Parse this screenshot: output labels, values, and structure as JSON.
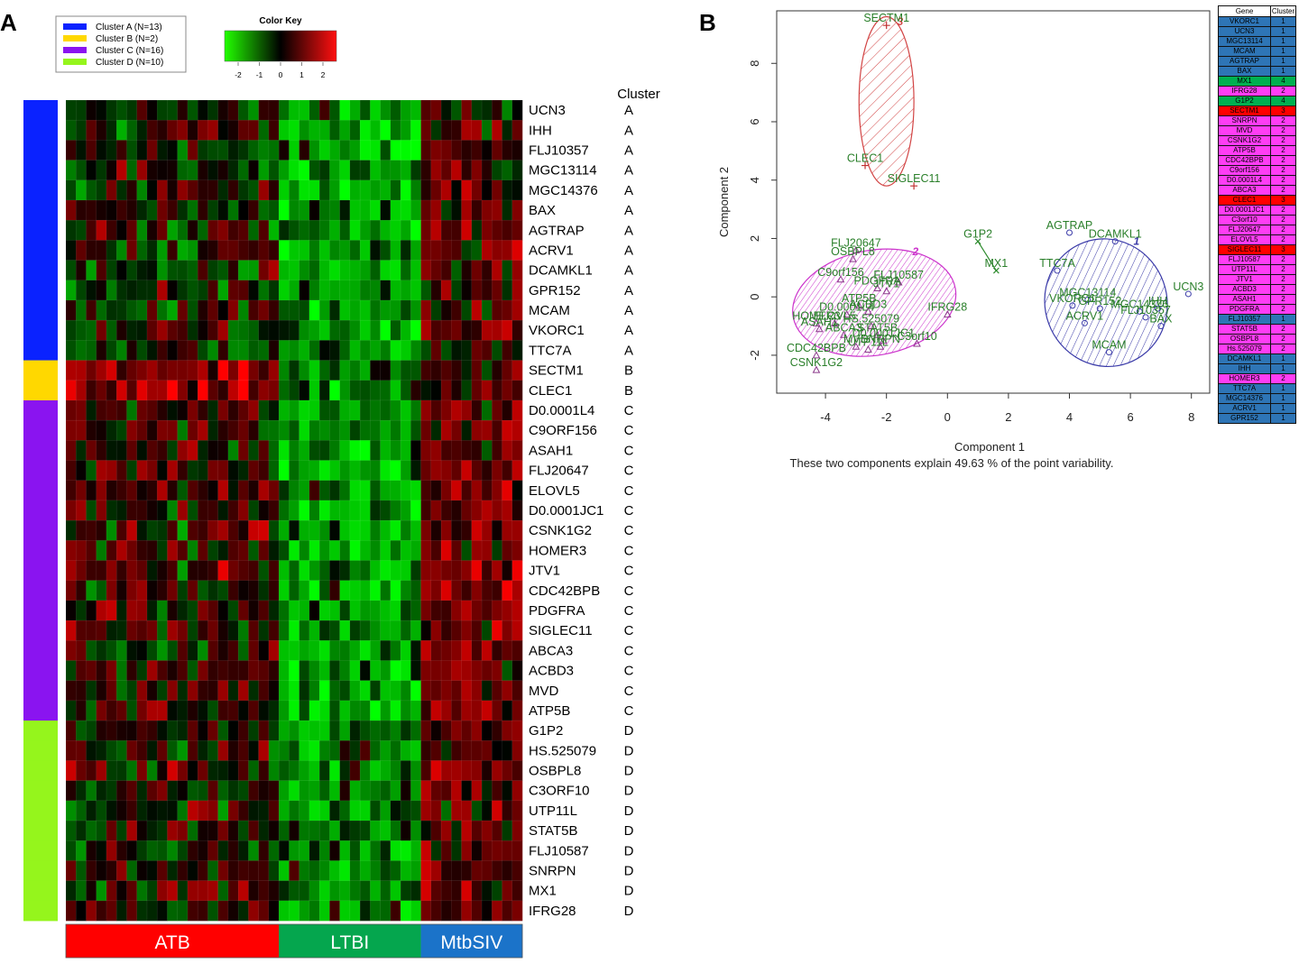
{
  "panel_labels": {
    "a": "A",
    "b": "B"
  },
  "colors": {
    "cluster_A": "#0a22ff",
    "cluster_B": "#ffd800",
    "cluster_C": "#8a14f0",
    "cluster_D": "#95f51c",
    "atb": "#ff0000",
    "ltbi": "#05a64e",
    "mtbsiv": "#1b73c9",
    "pca_text": "#2a7f2a",
    "ellipse_1": "#3a3aa8",
    "ellipse_2": "#cc33cc",
    "ellipse_3": "#d24444",
    "table_c1": "#2e75b6",
    "table_c2": "#ff3df5",
    "table_c3": "#ff0000",
    "table_c4": "#00b050"
  },
  "legend": [
    {
      "label": "Cluster A (N=13)",
      "color": "#0a22ff"
    },
    {
      "label": "Cluster B (N=2)",
      "color": "#ffd800"
    },
    {
      "label": "Cluster C (N=16)",
      "color": "#8a14f0"
    },
    {
      "label": "Cluster D (N=10)",
      "color": "#95f51c"
    }
  ],
  "color_key": {
    "title": "Color Key",
    "ticks": [
      "-2",
      "-1",
      "0",
      "1",
      "2"
    ]
  },
  "heatmap": {
    "cluster_header": "Cluster",
    "rows": [
      {
        "gene": "UCN3",
        "cluster": "A"
      },
      {
        "gene": "IHH",
        "cluster": "A"
      },
      {
        "gene": "FLJ10357",
        "cluster": "A"
      },
      {
        "gene": "MGC13114",
        "cluster": "A"
      },
      {
        "gene": "MGC14376",
        "cluster": "A"
      },
      {
        "gene": "BAX",
        "cluster": "A"
      },
      {
        "gene": "AGTRAP",
        "cluster": "A"
      },
      {
        "gene": "ACRV1",
        "cluster": "A"
      },
      {
        "gene": "DCAMKL1",
        "cluster": "A"
      },
      {
        "gene": "GPR152",
        "cluster": "A"
      },
      {
        "gene": "MCAM",
        "cluster": "A"
      },
      {
        "gene": "VKORC1",
        "cluster": "A"
      },
      {
        "gene": "TTC7A",
        "cluster": "A"
      },
      {
        "gene": "SECTM1",
        "cluster": "B"
      },
      {
        "gene": "CLEC1",
        "cluster": "B"
      },
      {
        "gene": "D0.0001L4",
        "cluster": "C"
      },
      {
        "gene": "C9ORF156",
        "cluster": "C"
      },
      {
        "gene": "ASAH1",
        "cluster": "C"
      },
      {
        "gene": "FLJ20647",
        "cluster": "C"
      },
      {
        "gene": "ELOVL5",
        "cluster": "C"
      },
      {
        "gene": "D0.0001JC1",
        "cluster": "C"
      },
      {
        "gene": "CSNK1G2",
        "cluster": "C"
      },
      {
        "gene": "HOMER3",
        "cluster": "C"
      },
      {
        "gene": "JTV1",
        "cluster": "C"
      },
      {
        "gene": "CDC42BPB",
        "cluster": "C"
      },
      {
        "gene": "PDGFRA",
        "cluster": "C"
      },
      {
        "gene": "SIGLEC11",
        "cluster": "C"
      },
      {
        "gene": "ABCA3",
        "cluster": "C"
      },
      {
        "gene": "ACBD3",
        "cluster": "C"
      },
      {
        "gene": "MVD",
        "cluster": "C"
      },
      {
        "gene": "ATP5B",
        "cluster": "C"
      },
      {
        "gene": "G1P2",
        "cluster": "D"
      },
      {
        "gene": "HS.525079",
        "cluster": "D"
      },
      {
        "gene": "OSBPL8",
        "cluster": "D"
      },
      {
        "gene": "C3ORF10",
        "cluster": "D"
      },
      {
        "gene": "UTP11L",
        "cluster": "D"
      },
      {
        "gene": "STAT5B",
        "cluster": "D"
      },
      {
        "gene": "FLJ10587",
        "cluster": "D"
      },
      {
        "gene": "SNRPN",
        "cluster": "D"
      },
      {
        "gene": "MX1",
        "cluster": "D"
      },
      {
        "gene": "IFRG28",
        "cluster": "D"
      }
    ],
    "groups": [
      {
        "label": "ATB",
        "n": 21
      },
      {
        "label": "LTBI",
        "n": 14
      },
      {
        "label": "MtbSIV",
        "n": 10
      }
    ]
  },
  "chart_data": {
    "type": "scatter",
    "xlabel": "Component 1",
    "ylabel": "Component 2",
    "caption": "These two components explain 49.63 % of the point variability.",
    "xlim": [
      -5.6,
      8.6
    ],
    "ylim": [
      -3.3,
      9.8
    ],
    "xticks": [
      -4,
      -2,
      0,
      2,
      4,
      6,
      8
    ],
    "yticks": [
      -2,
      0,
      2,
      4,
      6,
      8
    ],
    "clusters": [
      {
        "id": "1",
        "label": "1",
        "center": [
          5.2,
          -0.2
        ],
        "rx": 2.0,
        "ry": 2.2,
        "angle": 20,
        "color": "#3a3aa8"
      },
      {
        "id": "2",
        "label": "2",
        "center": [
          -2.4,
          -0.2
        ],
        "rx": 2.7,
        "ry": 1.8,
        "angle": 10,
        "color": "#cc33cc"
      },
      {
        "id": "3",
        "label": "3",
        "center": [
          -2.0,
          6.7
        ],
        "rx": 0.9,
        "ry": 2.9,
        "angle": 0,
        "color": "#d24444"
      }
    ],
    "points": [
      {
        "label": "SECTM1",
        "x": -2.0,
        "y": 9.3,
        "cluster": "3"
      },
      {
        "label": "CLEC1",
        "x": -2.7,
        "y": 4.5,
        "cluster": "3"
      },
      {
        "label": "SIGLEC11",
        "x": -1.1,
        "y": 3.8,
        "cluster": "3"
      },
      {
        "label": "G1P2",
        "x": 1.0,
        "y": 1.9,
        "cluster": "4"
      },
      {
        "label": "MX1",
        "x": 1.6,
        "y": 0.9,
        "cluster": "4"
      },
      {
        "label": "AGTRAP",
        "x": 4.0,
        "y": 2.2,
        "cluster": "1"
      },
      {
        "label": "DCAMKL1",
        "x": 5.5,
        "y": 1.9,
        "cluster": "1"
      },
      {
        "label": "TTC7A",
        "x": 3.6,
        "y": 0.9,
        "cluster": "1"
      },
      {
        "label": "UCN3",
        "x": 7.9,
        "y": 0.1,
        "cluster": "1"
      },
      {
        "label": "MGC13114",
        "x": 4.6,
        "y": -0.1,
        "cluster": "1"
      },
      {
        "label": "VKORC1",
        "x": 4.1,
        "y": -0.3,
        "cluster": "1"
      },
      {
        "label": "GPR152",
        "x": 5.0,
        "y": -0.4,
        "cluster": "1"
      },
      {
        "label": "MGC14376",
        "x": 6.3,
        "y": -0.5,
        "cluster": "1"
      },
      {
        "label": "IHH",
        "x": 6.9,
        "y": -0.4,
        "cluster": "1"
      },
      {
        "label": "FLJ10357",
        "x": 6.5,
        "y": -0.7,
        "cluster": "1"
      },
      {
        "label": "BAX",
        "x": 7.0,
        "y": -1.0,
        "cluster": "1"
      },
      {
        "label": "ACRV1",
        "x": 4.5,
        "y": -0.9,
        "cluster": "1"
      },
      {
        "label": "MCAM",
        "x": 5.3,
        "y": -1.9,
        "cluster": "1"
      },
      {
        "label": "FLJ20647",
        "x": -3.0,
        "y": 1.6,
        "cluster": "2"
      },
      {
        "label": "OSBPL8",
        "x": -3.1,
        "y": 1.3,
        "cluster": "2"
      },
      {
        "label": "C9orf156",
        "x": -3.5,
        "y": 0.6,
        "cluster": "2"
      },
      {
        "label": "FLJ10587",
        "x": -1.6,
        "y": 0.5,
        "cluster": "2"
      },
      {
        "label": "PDGFRA",
        "x": -2.3,
        "y": 0.3,
        "cluster": "2"
      },
      {
        "label": "JTV1",
        "x": -2.0,
        "y": 0.2,
        "cluster": "2"
      },
      {
        "label": "ATP5B",
        "x": -2.9,
        "y": -0.3,
        "cluster": "2"
      },
      {
        "label": "ACBD3",
        "x": -2.6,
        "y": -0.5,
        "cluster": "2"
      },
      {
        "label": "D0.0001L4",
        "x": -3.3,
        "y": -0.6,
        "cluster": "2"
      },
      {
        "label": "IFRG28",
        "x": 0.0,
        "y": -0.6,
        "cluster": "2"
      },
      {
        "label": "HOMER3",
        "x": -4.3,
        "y": -0.9,
        "cluster": "2"
      },
      {
        "label": "ASAH1",
        "x": -4.2,
        "y": -1.1,
        "cluster": "2"
      },
      {
        "label": "ELOVL5",
        "x": -3.7,
        "y": -0.9,
        "cluster": "2"
      },
      {
        "label": "HS.525079",
        "x": -2.5,
        "y": -1.0,
        "cluster": "2"
      },
      {
        "label": "ABCA3",
        "x": -3.4,
        "y": -1.3,
        "cluster": "2"
      },
      {
        "label": "STAT5B",
        "x": -2.3,
        "y": -1.3,
        "cluster": "2"
      },
      {
        "label": "D0.0001JC1",
        "x": -2.1,
        "y": -1.5,
        "cluster": "2"
      },
      {
        "label": "C3orf10",
        "x": -1.0,
        "y": -1.6,
        "cluster": "2"
      },
      {
        "label": "MVD",
        "x": -3.0,
        "y": -1.7,
        "cluster": "2"
      },
      {
        "label": "SNRPN",
        "x": -2.2,
        "y": -1.7,
        "cluster": "2"
      },
      {
        "label": "UTP11L",
        "x": -2.6,
        "y": -1.8,
        "cluster": "2"
      },
      {
        "label": "CDC42BPB",
        "x": -4.3,
        "y": -2.0,
        "cluster": "2"
      },
      {
        "label": "CSNK1G2",
        "x": -4.3,
        "y": -2.5,
        "cluster": "2"
      }
    ]
  },
  "gene_table": {
    "headers": [
      "Gene",
      "Cluster"
    ],
    "rows": [
      [
        "VKORC1",
        "1"
      ],
      [
        "UCN3",
        "1"
      ],
      [
        "MGC13114",
        "1"
      ],
      [
        "MCAM",
        "1"
      ],
      [
        "AGTRAP",
        "1"
      ],
      [
        "BAX",
        "1"
      ],
      [
        "MX1",
        "4"
      ],
      [
        "IFRG28",
        "2"
      ],
      [
        "G1P2",
        "4"
      ],
      [
        "SECTM1",
        "3"
      ],
      [
        "SNRPN",
        "2"
      ],
      [
        "MVD",
        "2"
      ],
      [
        "CSNK1G2",
        "2"
      ],
      [
        "ATP5B",
        "2"
      ],
      [
        "CDC42BPB",
        "2"
      ],
      [
        "C9orf156",
        "2"
      ],
      [
        "D0.0001L4",
        "2"
      ],
      [
        "ABCA3",
        "2"
      ],
      [
        "CLEC1",
        "3"
      ],
      [
        "D0.0001JC1",
        "2"
      ],
      [
        "C3orf10",
        "2"
      ],
      [
        "FLJ20647",
        "2"
      ],
      [
        "ELOVL5",
        "2"
      ],
      [
        "SIGLEC11",
        "3"
      ],
      [
        "FLJ10587",
        "2"
      ],
      [
        "UTP11L",
        "2"
      ],
      [
        "JTV1",
        "2"
      ],
      [
        "ACBD3",
        "2"
      ],
      [
        "ASAH1",
        "2"
      ],
      [
        "PDGFRA",
        "2"
      ],
      [
        "FLJ10357",
        "1"
      ],
      [
        "STAT5B",
        "2"
      ],
      [
        "OSBPL8",
        "2"
      ],
      [
        "Hs.525079",
        "2"
      ],
      [
        "DCAMKL1",
        "1"
      ],
      [
        "IHH",
        "1"
      ],
      [
        "HOMER3",
        "2"
      ],
      [
        "TTC7A",
        "1"
      ],
      [
        "MGC14376",
        "1"
      ],
      [
        "ACRV1",
        "1"
      ],
      [
        "GPR152",
        "1"
      ]
    ]
  }
}
